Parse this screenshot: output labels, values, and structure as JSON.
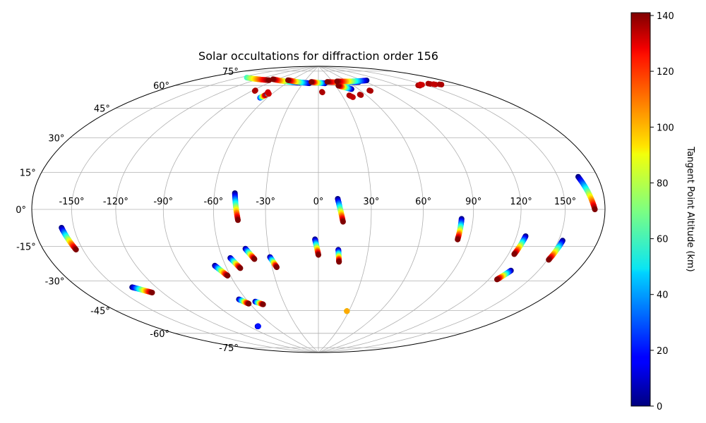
{
  "chart_data": {
    "type": "scatter",
    "projection": "hammer",
    "title": "Solar occultations for diffraction order 156",
    "colormap": "jet",
    "grid": true,
    "lon_ticks": [
      -150,
      -120,
      -90,
      -60,
      -30,
      0,
      30,
      60,
      90,
      120,
      150
    ],
    "lon_tick_labels": [
      "-150°",
      "-120°",
      "-90°",
      "-60°",
      "-30°",
      "0°",
      "30°",
      "60°",
      "90°",
      "120°",
      "150°"
    ],
    "lat_ticks": [
      -75,
      -60,
      -45,
      -30,
      -15,
      0,
      15,
      30,
      45,
      60,
      75
    ],
    "lat_tick_labels": [
      "-75°",
      "-60°",
      "-45°",
      "-30°",
      "-15°",
      "0°",
      "15°",
      "30°",
      "45°",
      "60°",
      "75°"
    ],
    "colorbar": {
      "label": "Tangent Point Altitude (km)",
      "range": [
        0,
        141
      ],
      "ticks": [
        0,
        20,
        40,
        60,
        80,
        100,
        120,
        140
      ],
      "tick_labels": [
        "0",
        "20",
        "40",
        "60",
        "80",
        "100",
        "120",
        "140"
      ]
    },
    "tracks": [
      {
        "lon_start": -159,
        "lat_start": -8,
        "lon_end": -155,
        "lat_end": -18,
        "alt_start": 0,
        "alt_end": 141
      },
      {
        "lon_start": -138,
        "lat_start": -38,
        "lon_end": -128,
        "lat_end": -42,
        "alt_start": 0,
        "alt_end": 141
      },
      {
        "lon_start": -48,
        "lat_start": 9,
        "lon_end": -46,
        "lat_end": -6,
        "alt_start": 0,
        "alt_end": 141
      },
      {
        "lon_start": -67,
        "lat_start": -31,
        "lon_end": -62,
        "lat_end": -37,
        "alt_start": 0,
        "alt_end": 141
      },
      {
        "lon_start": -55,
        "lat_start": -27,
        "lon_end": -51,
        "lat_end": -33,
        "alt_start": 0,
        "alt_end": 141
      },
      {
        "lon_start": -44,
        "lat_start": -22,
        "lon_end": -40,
        "lat_end": -28,
        "alt_start": 0,
        "alt_end": 141
      },
      {
        "lon_start": -30,
        "lat_start": -27,
        "lon_end": -27,
        "lat_end": -33,
        "alt_start": 0,
        "alt_end": 141
      },
      {
        "lon_start": -66,
        "lat_start": -51,
        "lon_end": -61,
        "lat_end": -54,
        "alt_start": 0,
        "alt_end": 141
      },
      {
        "lon_start": -54,
        "lat_start": -53,
        "lon_end": -49,
        "lat_end": -55,
        "alt_start": 0,
        "alt_end": 141
      },
      {
        "lon_start": -80,
        "lat_start": -68,
        "lon_end": -79,
        "lat_end": -68,
        "alt_start": 0,
        "alt_end": 20
      },
      {
        "lon_start": -2,
        "lat_start": -17,
        "lon_end": 0,
        "lat_end": -26,
        "alt_start": 0,
        "alt_end": 141
      },
      {
        "lon_start": 11,
        "lat_start": 6,
        "lon_end": 14,
        "lat_end": -7,
        "alt_start": 0,
        "alt_end": 141
      },
      {
        "lon_start": 12,
        "lat_start": -23,
        "lon_end": 13,
        "lat_end": -30,
        "alt_start": 0,
        "alt_end": 141
      },
      {
        "lon_start": 28,
        "lat_start": -60,
        "lon_end": 28,
        "lat_end": -60,
        "alt_start": 0,
        "alt_end": 100
      },
      {
        "lon_start": 83,
        "lat_start": -5,
        "lon_end": 83,
        "lat_end": -16,
        "alt_start": 0,
        "alt_end": 141
      },
      {
        "lon_start": 126,
        "lat_start": -13,
        "lon_end": 124,
        "lat_end": -22,
        "alt_start": 0,
        "alt_end": 141
      },
      {
        "lon_start": 130,
        "lat_start": -30,
        "lon_end": 126,
        "lat_end": -35,
        "alt_start": 0,
        "alt_end": 141
      },
      {
        "lon_start": 153,
        "lat_start": -14,
        "lon_end": 151,
        "lat_end": -23,
        "alt_start": 0,
        "alt_end": 141
      },
      {
        "lon_start": 165,
        "lat_start": 14,
        "lon_end": 172,
        "lat_end": 0,
        "alt_start": 0,
        "alt_end": 141
      },
      {
        "lon_start": -37,
        "lat_start": 77,
        "lon_end": -98,
        "lat_end": 77,
        "alt_start": 0,
        "alt_end": 141
      },
      {
        "lon_start": -18,
        "lat_start": 77,
        "lon_end": -67,
        "lat_end": 78,
        "alt_start": 0,
        "alt_end": 141
      },
      {
        "lon_start": 13,
        "lat_start": 77,
        "lon_end": -15,
        "lat_end": 78,
        "alt_start": 0,
        "alt_end": 141
      },
      {
        "lon_start": 79,
        "lat_start": 76,
        "lon_end": 19,
        "lat_end": 78,
        "alt_start": 0,
        "alt_end": 141
      },
      {
        "lon_start": 50,
        "lat_start": 72,
        "lon_end": 35,
        "lat_end": 75,
        "alt_start": 0,
        "alt_end": 141
      },
      {
        "lon_start": 97,
        "lat_start": 76,
        "lon_end": 40,
        "lat_end": 78,
        "alt_start": 0,
        "alt_end": 141
      },
      {
        "lon_start": -142,
        "lat_start": 74,
        "lon_end": -100,
        "lat_end": 76,
        "alt_start": 60,
        "alt_end": 141
      },
      {
        "lon_start": -68,
        "lat_start": 65,
        "lon_end": -66,
        "lat_end": 67,
        "alt_start": 20,
        "alt_end": 130
      },
      {
        "lon_start": -66,
        "lat_start": 68,
        "lon_end": -64,
        "lat_end": 68,
        "alt_start": 0,
        "alt_end": 130
      }
    ],
    "clusters": [
      {
        "lon": -87,
        "lat": 69,
        "alt": 135
      },
      {
        "lon": -68,
        "lat": 69,
        "alt": 130
      },
      {
        "lon": 5,
        "lat": 71,
        "alt": 135
      },
      {
        "lon": 39,
        "lat": 68,
        "alt": 135
      },
      {
        "lon": 41,
        "lat": 67,
        "alt": 132
      },
      {
        "lon": 53,
        "lat": 68,
        "alt": 135
      },
      {
        "lon": 72,
        "lat": 70,
        "alt": 135
      },
      {
        "lon": 142,
        "lat": 67,
        "alt": 135
      },
      {
        "lon": 147,
        "lat": 67,
        "alt": 130
      },
      {
        "lon": 157,
        "lat": 66,
        "alt": 135
      },
      {
        "lon": 160,
        "lat": 65,
        "alt": 132
      },
      {
        "lon": 165,
        "lat": 64,
        "alt": 135
      }
    ]
  }
}
